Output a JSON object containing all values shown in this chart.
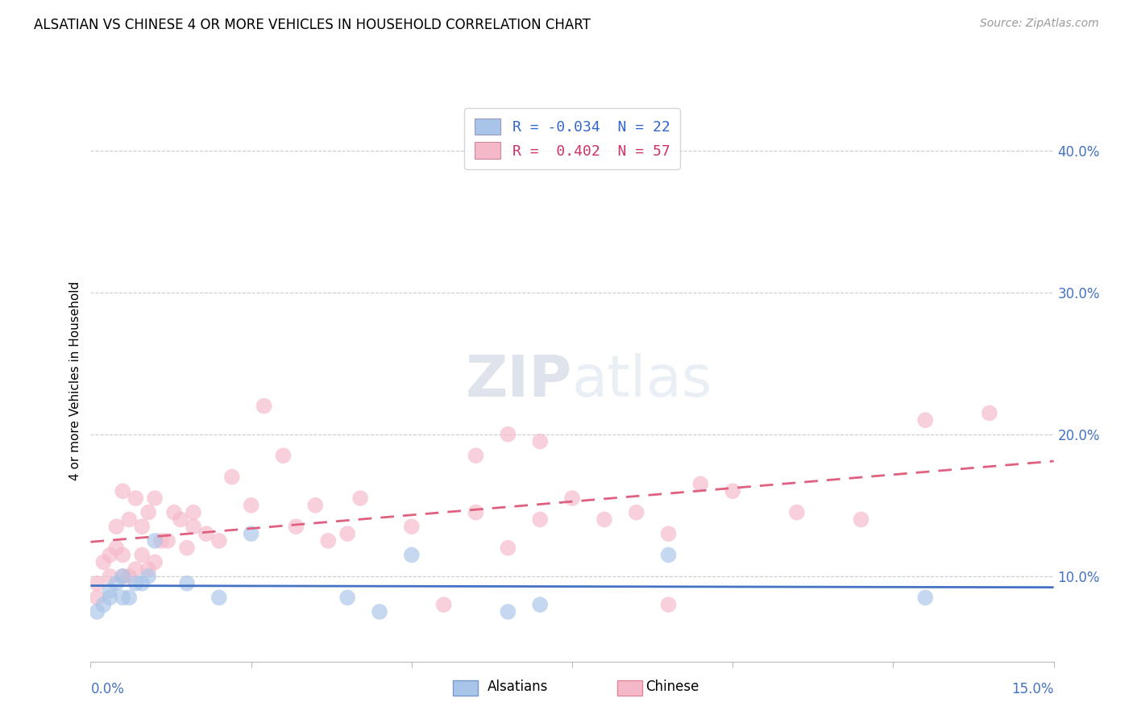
{
  "title": "ALSATIAN VS CHINESE 4 OR MORE VEHICLES IN HOUSEHOLD CORRELATION CHART",
  "source": "Source: ZipAtlas.com",
  "ylabel": "4 or more Vehicles in Household",
  "y_ticks": [
    0.1,
    0.2,
    0.3,
    0.4
  ],
  "y_tick_labels": [
    "10.0%",
    "20.0%",
    "30.0%",
    "40.0%"
  ],
  "x_range": [
    0.0,
    0.15
  ],
  "y_range": [
    0.04,
    0.435
  ],
  "alsatian_color": "#a8c4e8",
  "chinese_color": "#f5b8c8",
  "alsatian_line_color": "#4472c4",
  "chinese_line_color": "#e06080",
  "alsatian_R": -0.034,
  "chinese_R": 0.402,
  "alsatian_N": 22,
  "chinese_N": 57,
  "alsatian_scatter_x": [
    0.001,
    0.002,
    0.003,
    0.003,
    0.004,
    0.005,
    0.005,
    0.006,
    0.007,
    0.008,
    0.009,
    0.01,
    0.015,
    0.02,
    0.025,
    0.04,
    0.045,
    0.05,
    0.065,
    0.07,
    0.09,
    0.13
  ],
  "alsatian_scatter_y": [
    0.075,
    0.08,
    0.085,
    0.09,
    0.095,
    0.085,
    0.1,
    0.085,
    0.095,
    0.095,
    0.1,
    0.125,
    0.095,
    0.085,
    0.13,
    0.085,
    0.075,
    0.115,
    0.075,
    0.08,
    0.115,
    0.085
  ],
  "chinese_scatter_x": [
    0.001,
    0.001,
    0.002,
    0.003,
    0.003,
    0.004,
    0.004,
    0.005,
    0.005,
    0.005,
    0.006,
    0.006,
    0.007,
    0.007,
    0.008,
    0.008,
    0.009,
    0.009,
    0.01,
    0.01,
    0.011,
    0.012,
    0.013,
    0.014,
    0.015,
    0.016,
    0.016,
    0.018,
    0.02,
    0.022,
    0.025,
    0.027,
    0.03,
    0.032,
    0.035,
    0.037,
    0.04,
    0.042,
    0.05,
    0.055,
    0.06,
    0.065,
    0.07,
    0.075,
    0.08,
    0.085,
    0.09,
    0.095,
    0.1,
    0.11,
    0.12,
    0.13,
    0.14,
    0.06,
    0.07,
    0.065,
    0.09
  ],
  "chinese_scatter_y": [
    0.085,
    0.095,
    0.11,
    0.1,
    0.115,
    0.12,
    0.135,
    0.1,
    0.115,
    0.16,
    0.1,
    0.14,
    0.105,
    0.155,
    0.115,
    0.135,
    0.105,
    0.145,
    0.11,
    0.155,
    0.125,
    0.125,
    0.145,
    0.14,
    0.12,
    0.135,
    0.145,
    0.13,
    0.125,
    0.17,
    0.15,
    0.22,
    0.185,
    0.135,
    0.15,
    0.125,
    0.13,
    0.155,
    0.135,
    0.08,
    0.145,
    0.12,
    0.14,
    0.155,
    0.14,
    0.145,
    0.13,
    0.165,
    0.16,
    0.145,
    0.14,
    0.21,
    0.215,
    0.185,
    0.195,
    0.2,
    0.08
  ]
}
